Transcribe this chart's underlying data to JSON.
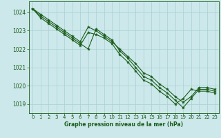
{
  "title": "Graphe pression niveau de la mer (hPa)",
  "bg_color": "#cce8ea",
  "grid_color": "#a8d0d4",
  "line_color": "#1a5c1a",
  "xlim": [
    -0.5,
    23.5
  ],
  "ylim": [
    1018.5,
    1024.6
  ],
  "yticks": [
    1019,
    1020,
    1021,
    1022,
    1023,
    1024
  ],
  "xticks": [
    0,
    1,
    2,
    3,
    4,
    5,
    6,
    7,
    8,
    9,
    10,
    11,
    12,
    13,
    14,
    15,
    16,
    17,
    18,
    19,
    20,
    21,
    22,
    23
  ],
  "series": [
    [
      1024.2,
      1023.8,
      1023.5,
      1023.2,
      1022.9,
      1022.6,
      1022.3,
      1022.0,
      1023.1,
      1022.8,
      1022.5,
      1021.9,
      1021.5,
      1021.0,
      1020.5,
      1020.3,
      1019.9,
      1019.6,
      1019.2,
      1018.8,
      1019.3,
      1019.8,
      1019.8,
      1019.7
    ],
    [
      1024.2,
      1023.7,
      1023.4,
      1023.1,
      1022.8,
      1022.5,
      1022.2,
      1022.9,
      1022.8,
      1022.6,
      1022.3,
      1021.7,
      1021.3,
      1020.8,
      1020.3,
      1020.1,
      1019.7,
      1019.4,
      1019.0,
      1019.3,
      1019.8,
      1019.7,
      1019.7,
      1019.6
    ],
    [
      1024.2,
      1023.9,
      1023.6,
      1023.3,
      1023.0,
      1022.7,
      1022.4,
      1023.2,
      1023.0,
      1022.7,
      1022.4,
      1022.0,
      1021.6,
      1021.2,
      1020.7,
      1020.5,
      1020.1,
      1019.8,
      1019.4,
      1019.1,
      1019.4,
      1019.9,
      1019.9,
      1019.8
    ]
  ],
  "title_fontsize": 5.5,
  "tick_fontsize": 5.0,
  "ytick_fontsize": 5.5
}
